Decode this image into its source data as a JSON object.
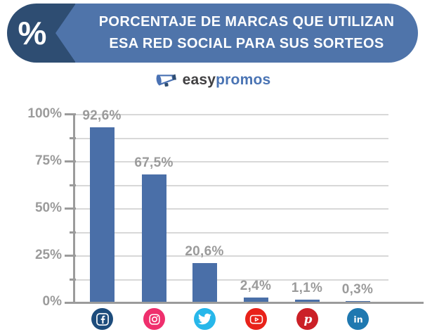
{
  "header": {
    "badge": "%",
    "title_line1": "PORCENTAJE DE MARCAS QUE UTILIZAN",
    "title_line2": "ESA RED SOCIAL PARA SUS SORTEOS"
  },
  "logo": {
    "easy": "easy",
    "promos": "promos"
  },
  "chart_data": {
    "type": "bar",
    "title": "Porcentaje de marcas que utilizan esa red social para sus sorteos",
    "categories": [
      "Facebook",
      "Instagram",
      "Twitter",
      "YouTube",
      "Pinterest",
      "LinkedIn"
    ],
    "values": [
      92.6,
      67.5,
      20.6,
      2.4,
      1.1,
      0.3
    ],
    "value_labels": [
      "92,6%",
      "67,5%",
      "20,6%",
      "2,4%",
      "1,1%",
      "0,3%"
    ],
    "y_ticks": [
      "100%",
      "75%",
      "50%",
      "25%",
      "0%"
    ],
    "ylim": [
      0,
      100
    ],
    "grid": "horizontal gridlines every 12.5%",
    "legend": "none",
    "bar_color": "#4a6fa8"
  },
  "icons": [
    {
      "name": "facebook-icon",
      "color": "#1d4c7c"
    },
    {
      "name": "instagram-icon",
      "color": "#ef2f6d"
    },
    {
      "name": "twitter-icon",
      "color": "#27b7ea"
    },
    {
      "name": "youtube-icon",
      "color": "#e8221a"
    },
    {
      "name": "pinterest-icon",
      "color": "#cb2027"
    },
    {
      "name": "linkedin-icon",
      "color": "#1f78b0"
    }
  ],
  "colors": {
    "banner_dark": "#2e4d72",
    "banner_light": "#4f74aa",
    "axis_gray": "#9b9b9b",
    "grid_gray": "#d8d8d8",
    "label_gray": "#9b9b9b",
    "logo_dark": "#414042",
    "logo_blue": "#4a74b4",
    "background": "#ffffff"
  }
}
